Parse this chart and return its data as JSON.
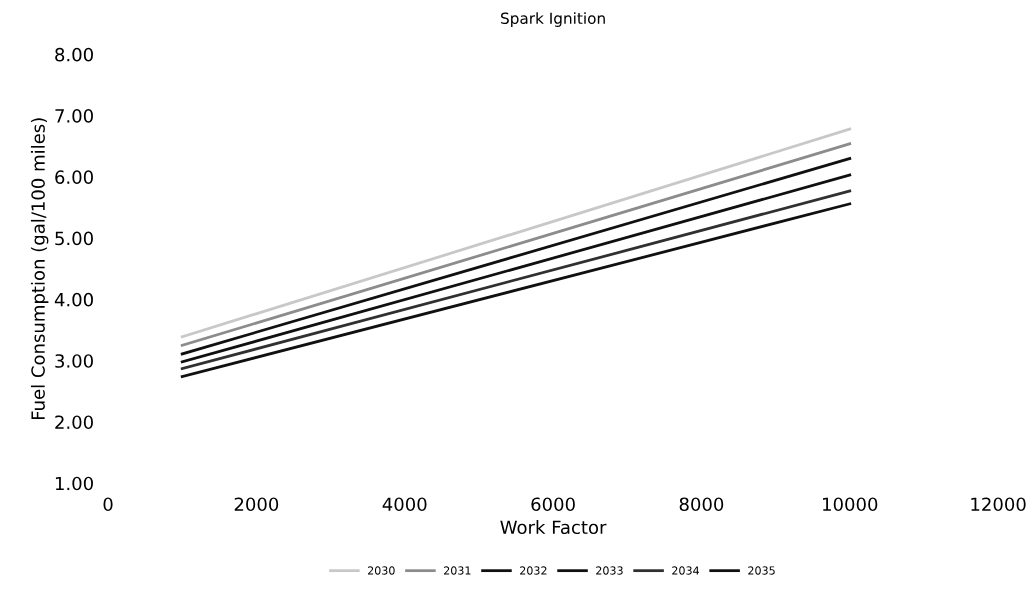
{
  "chart_data": {
    "type": "line",
    "title": "Spark Ignition",
    "xlabel": "Work Factor",
    "ylabel": "Fuel Consumption (gal/100 miles)",
    "x": [
      1000,
      10000
    ],
    "series": [
      {
        "name": "2030",
        "color": "#c8c8c8",
        "values": [
          3.39,
          6.78
        ]
      },
      {
        "name": "2031",
        "color": "#8c8c8c",
        "values": [
          3.25,
          6.54
        ]
      },
      {
        "name": "2032",
        "color": "#101010",
        "values": [
          3.11,
          6.3
        ]
      },
      {
        "name": "2033",
        "color": "#101010",
        "values": [
          2.98,
          6.03
        ]
      },
      {
        "name": "2034",
        "color": "#303030",
        "values": [
          2.87,
          5.77
        ]
      },
      {
        "name": "2035",
        "color": "#101010",
        "values": [
          2.74,
          5.56
        ]
      }
    ],
    "xlim": [
      0,
      12000
    ],
    "xticks": [
      0,
      2000,
      4000,
      6000,
      8000,
      10000,
      12000
    ],
    "ylim": [
      1,
      8
    ],
    "yticks": [
      {
        "value": 1,
        "label": "1.00"
      },
      {
        "value": 2,
        "label": "2.00"
      },
      {
        "value": 3,
        "label": "3.00"
      },
      {
        "value": 4,
        "label": "4.00"
      },
      {
        "value": 5,
        "label": "5.00"
      },
      {
        "value": 6,
        "label": "6.00"
      },
      {
        "value": 7,
        "label": "7.00"
      },
      {
        "value": 8,
        "label": "8.00"
      }
    ],
    "grid": false,
    "legend": "bottom",
    "marker": "none",
    "line_style": "solid"
  }
}
